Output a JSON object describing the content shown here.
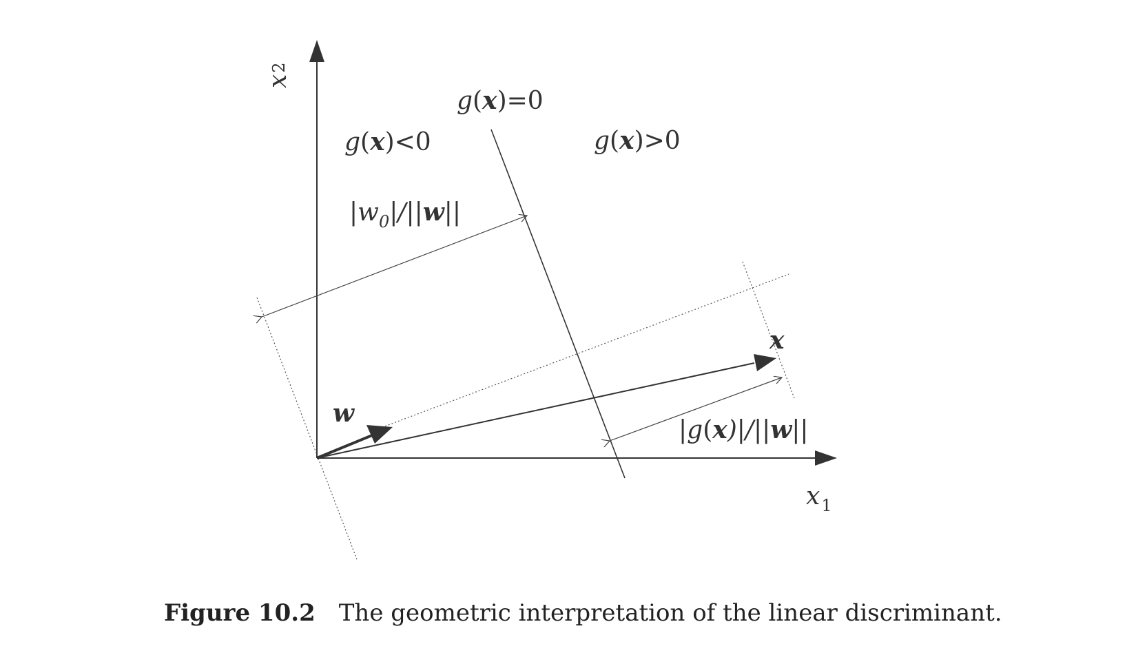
{
  "figure": {
    "axis_labels": {
      "x1": {
        "base": "x",
        "sub": "1"
      },
      "x2": {
        "base": "x",
        "sub": "2"
      }
    },
    "region_labels": {
      "negative": {
        "g": "g",
        "open": "(",
        "x": "x",
        "close": ")<0"
      },
      "boundary": {
        "g": "g",
        "open": "(",
        "x": "x",
        "close": ")=0"
      },
      "positive": {
        "g": "g",
        "open": "(",
        "x": "x",
        "close": ")>0"
      }
    },
    "vector_labels": {
      "w": "w",
      "x": "x"
    },
    "distance_labels": {
      "w0_over_norm": {
        "bar1": "|",
        "w": "w",
        "sub": "0",
        "mid": "|/||",
        "wb": "w",
        "end": "||"
      },
      "gx_over_norm": {
        "bar1": "|",
        "g": "g",
        "open": "(",
        "x": "x",
        "mid": ")|/||",
        "wb": "w",
        "end": "||"
      }
    }
  },
  "caption": {
    "number": "Figure 10.2",
    "text": "The geometric interpretation of the linear discriminant."
  }
}
